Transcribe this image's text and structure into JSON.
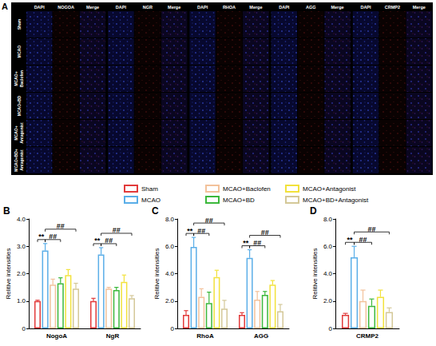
{
  "panel_a": {
    "panel": "A",
    "rows": [
      "Sham",
      "MCAO",
      "MCAO+Baclofen",
      "MCAO+BD",
      "MCAO+Antagonist",
      "MCAO+BD+Antagonist"
    ],
    "groups": [
      [
        "DAPI",
        "NOGOA",
        "Merge"
      ],
      [
        "DAPI",
        "NGR",
        "Merge"
      ],
      [
        "DAPI",
        "RHOA",
        "Merge"
      ],
      [
        "DAPI",
        "AGG",
        "Merge"
      ],
      [
        "DAPI",
        "CRMP2",
        "Merge"
      ]
    ]
  },
  "chart_data": [
    {
      "panel": "B",
      "type": "bar",
      "legend": "top",
      "grid": false,
      "categories": [
        "NogoA",
        "NgR"
      ],
      "y_label": "Relitive intensities",
      "ylim": [
        0,
        4
      ],
      "yticks": [
        0,
        {
          "value": 1,
          "label": "1.0"
        },
        {
          "value": 2,
          "label": "2.0"
        },
        {
          "value": 3,
          "label": "3.0"
        },
        {
          "value": 4,
          "label": "4.0"
        }
      ],
      "series": [
        {
          "name": "Sham",
          "color": "#e23b3b",
          "values": [
            1.0,
            1.0
          ],
          "errors": [
            0.03,
            0.1
          ]
        },
        {
          "name": "MCAO",
          "color": "#5aaee8",
          "values": [
            2.85,
            2.7
          ],
          "errors": [
            0.25,
            0.25
          ]
        },
        {
          "name": "MCAO+Baclofen",
          "color": "#f3c29b",
          "values": [
            1.6,
            1.45
          ],
          "errors": [
            0.2,
            0.05
          ]
        },
        {
          "name": "MCAO+BD",
          "color": "#3cb83c",
          "values": [
            1.65,
            1.4
          ],
          "errors": [
            0.2,
            0.1
          ]
        },
        {
          "name": "MCAO+Antagonist",
          "color": "#f2e23c",
          "values": [
            1.95,
            1.7
          ],
          "errors": [
            0.2,
            0.25
          ]
        },
        {
          "name": "MCAO+BD+Antagonist",
          "color": "#d4c898",
          "values": [
            1.45,
            1.1
          ],
          "errors": [
            0.2,
            0.1
          ]
        }
      ],
      "annotations": [
        {
          "category": "NogoA",
          "from": "Sham",
          "to": "MCAO",
          "text": "**"
        },
        {
          "category": "NogoA",
          "from": "MCAO",
          "to": "MCAO+BD",
          "text": "##"
        },
        {
          "category": "NogoA",
          "from": "MCAO",
          "to": "MCAO+BD+Antagonist",
          "text": "##"
        },
        {
          "category": "NgR",
          "from": "Sham",
          "to": "MCAO",
          "text": "**"
        },
        {
          "category": "NgR",
          "from": "MCAO",
          "to": "MCAO+BD",
          "text": "##"
        },
        {
          "category": "NgR",
          "from": "MCAO",
          "to": "MCAO+BD+Antagonist",
          "text": "##"
        }
      ]
    },
    {
      "panel": "C",
      "type": "bar",
      "grid": false,
      "categories": [
        "RhoA",
        "AGG"
      ],
      "y_label": "Relitive intensities",
      "ylim": [
        0,
        8
      ],
      "yticks": [
        0,
        {
          "value": 2,
          "label": "2.0"
        },
        {
          "value": 4,
          "label": "4.0"
        },
        {
          "value": 6,
          "label": "6.0"
        },
        {
          "value": 8,
          "label": "8.0"
        }
      ],
      "series": [
        {
          "name": "Sham",
          "color": "#e23b3b",
          "values": [
            1.0,
            1.0
          ],
          "errors": [
            0.3,
            0.15
          ]
        },
        {
          "name": "MCAO",
          "color": "#5aaee8",
          "values": [
            5.95,
            5.15
          ],
          "errors": [
            0.7,
            0.6
          ]
        },
        {
          "name": "MCAO+Baclofen",
          "color": "#f3c29b",
          "values": [
            2.3,
            2.1
          ],
          "errors": [
            0.6,
            0.6
          ]
        },
        {
          "name": "MCAO+BD",
          "color": "#3cb83c",
          "values": [
            1.85,
            2.45
          ],
          "errors": [
            0.8,
            0.25
          ]
        },
        {
          "name": "MCAO+Antagonist",
          "color": "#f2e23c",
          "values": [
            3.75,
            3.2
          ],
          "errors": [
            0.5,
            0.3
          ]
        },
        {
          "name": "MCAO+BD+Antagonist",
          "color": "#d4c898",
          "values": [
            1.45,
            1.25
          ],
          "errors": [
            0.6,
            0.5
          ]
        }
      ],
      "annotations": [
        {
          "category": "RhoA",
          "from": "Sham",
          "to": "MCAO",
          "text": "**"
        },
        {
          "category": "RhoA",
          "from": "MCAO",
          "to": "MCAO+BD",
          "text": "##"
        },
        {
          "category": "RhoA",
          "from": "MCAO",
          "to": "MCAO+BD+Antagonist",
          "text": "##"
        },
        {
          "category": "AGG",
          "from": "Sham",
          "to": "MCAO",
          "text": "**"
        },
        {
          "category": "AGG",
          "from": "MCAO",
          "to": "MCAO+BD",
          "text": "##"
        },
        {
          "category": "AGG",
          "from": "MCAO",
          "to": "MCAO+BD+Antagonist",
          "text": "##"
        }
      ]
    },
    {
      "panel": "D",
      "type": "bar",
      "grid": false,
      "categories": [
        "CRMP2"
      ],
      "y_label": "Relitive intensities",
      "ylim": [
        0,
        8
      ],
      "yticks": [
        0,
        {
          "value": 2,
          "label": "2.0"
        },
        {
          "value": 4,
          "label": "4.0"
        },
        {
          "value": 6,
          "label": "6.0"
        },
        {
          "value": 8,
          "label": "8.0"
        }
      ],
      "series": [
        {
          "name": "Sham",
          "color": "#e23b3b",
          "values": [
            1.0
          ],
          "errors": [
            0.1
          ]
        },
        {
          "name": "MCAO",
          "color": "#5aaee8",
          "values": [
            5.2
          ],
          "errors": [
            0.8
          ]
        },
        {
          "name": "MCAO+Baclofen",
          "color": "#f3c29b",
          "values": [
            2.0
          ],
          "errors": [
            0.8
          ]
        },
        {
          "name": "MCAO+BD",
          "color": "#3cb83c",
          "values": [
            1.65
          ],
          "errors": [
            0.5
          ]
        },
        {
          "name": "MCAO+Antagonist",
          "color": "#f2e23c",
          "values": [
            2.3
          ],
          "errors": [
            0.5
          ]
        },
        {
          "name": "MCAO+BD+Antagonist",
          "color": "#d4c898",
          "values": [
            1.2
          ],
          "errors": [
            0.3
          ]
        }
      ],
      "annotations": [
        {
          "category": "CRMP2",
          "from": "Sham",
          "to": "MCAO",
          "text": "**"
        },
        {
          "category": "CRMP2",
          "from": "MCAO",
          "to": "MCAO+BD",
          "text": "##"
        },
        {
          "category": "CRMP2",
          "from": "MCAO",
          "to": "MCAO+BD+Antagonist",
          "text": "##"
        }
      ]
    }
  ]
}
